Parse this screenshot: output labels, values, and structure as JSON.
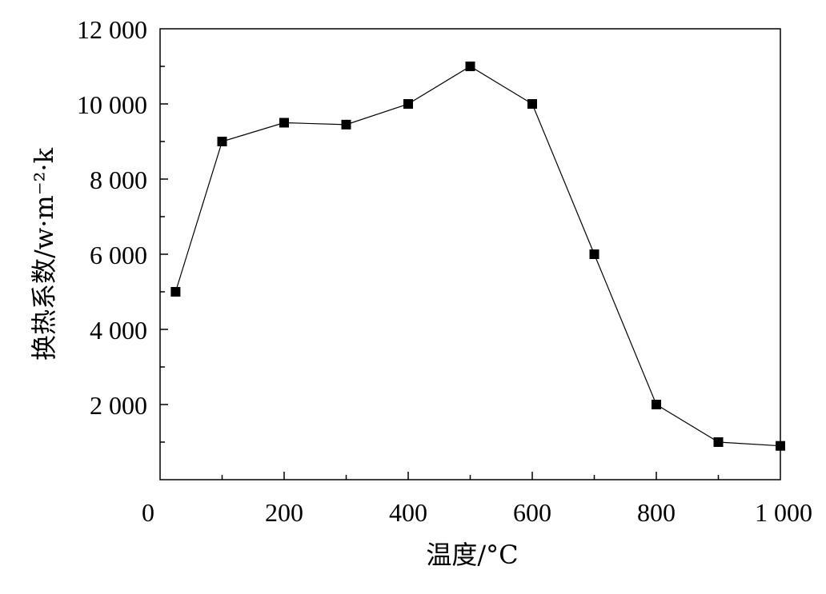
{
  "chart_data": {
    "type": "line",
    "title": "",
    "xlabel": "温度/°C",
    "ylabel": "换热系数/w·m⁻²·k",
    "xlim": [
      0,
      1000
    ],
    "ylim": [
      0,
      12000
    ],
    "x_ticks": [
      0,
      200,
      400,
      600,
      800,
      1000
    ],
    "x_tick_labels": [
      "0",
      "200",
      "400",
      "600",
      "800",
      "1 000"
    ],
    "y_ticks": [
      2000,
      4000,
      6000,
      8000,
      10000,
      12000
    ],
    "y_tick_labels": [
      "2 000",
      "4 000",
      "6 000",
      "8 000",
      "10 000",
      "12 000"
    ],
    "grid": false,
    "series": [
      {
        "marker": "square",
        "color": "#000000",
        "x": [
          25,
          100,
          200,
          300,
          400,
          500,
          600,
          700,
          800,
          900,
          1000
        ],
        "y": [
          5000,
          9000,
          9500,
          9450,
          10000,
          11000,
          10000,
          6000,
          2000,
          1000,
          900
        ]
      }
    ]
  }
}
